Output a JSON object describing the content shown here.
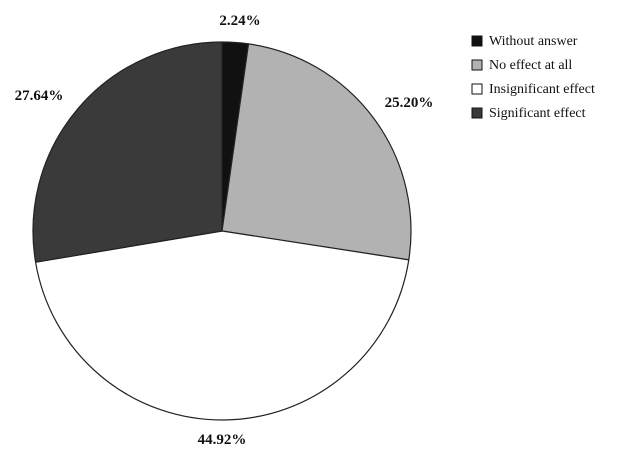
{
  "chart_data": {
    "type": "pie",
    "title": "",
    "slices": [
      {
        "label": "Without answer",
        "value": 2.24,
        "display": "2.24%",
        "color": "#111111"
      },
      {
        "label": "No effect at all",
        "value": 25.2,
        "display": "25.20%",
        "color": "#b2b2b2"
      },
      {
        "label": "Insignificant effect",
        "value": 44.92,
        "display": "44.92%",
        "color": "#ffffff"
      },
      {
        "label": "Significant effect",
        "value": 27.64,
        "display": "27.64%",
        "color": "#3a3a3a"
      }
    ],
    "start_angle": "12 o'clock",
    "direction": "clockwise",
    "legend_position": "right",
    "slice_border_color": "#222222"
  }
}
